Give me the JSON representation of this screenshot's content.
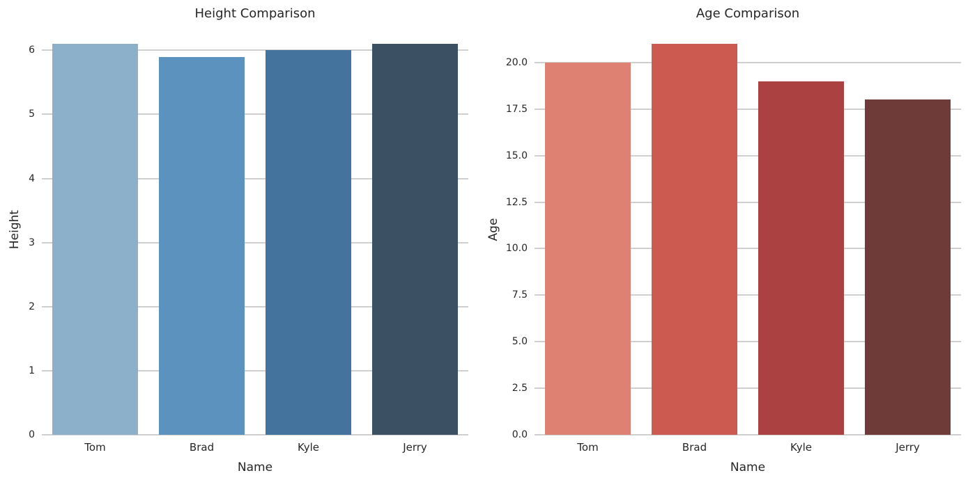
{
  "figure": {
    "background": "#ffffff",
    "text_color": "#262626",
    "grid_color": "#cfcfcf",
    "grid_style": "whitegrid"
  },
  "chart_data": [
    {
      "type": "bar",
      "title": "Height Comparison",
      "xlabel": "Name",
      "ylabel": "Height",
      "categories": [
        "Tom",
        "Brad",
        "Kyle",
        "Jerry"
      ],
      "values": [
        6.1,
        5.9,
        6.0,
        6.1
      ],
      "colors": [
        "#8DB0CA",
        "#5B93BE",
        "#44739D",
        "#3B5163"
      ],
      "palette": "blues-dark",
      "ylim": [
        0,
        6.405
      ],
      "yticks": [
        {
          "value": 0,
          "label": "0"
        },
        {
          "value": 1,
          "label": "1"
        },
        {
          "value": 2,
          "label": "2"
        },
        {
          "value": 3,
          "label": "3"
        },
        {
          "value": 4,
          "label": "4"
        },
        {
          "value": 5,
          "label": "5"
        },
        {
          "value": 6,
          "label": "6"
        }
      ],
      "grid": true,
      "legend": "none"
    },
    {
      "type": "bar",
      "title": "Age Comparison",
      "xlabel": "Name",
      "ylabel": "Age",
      "categories": [
        "Tom",
        "Brad",
        "Kyle",
        "Jerry"
      ],
      "values": [
        20,
        21,
        19,
        18
      ],
      "colors": [
        "#DF8172",
        "#CC5A50",
        "#AB4140",
        "#6E3B38"
      ],
      "palette": "reds-dark",
      "ylim": [
        0,
        22.05
      ],
      "yticks": [
        {
          "value": 0,
          "label": "0.0"
        },
        {
          "value": 2.5,
          "label": "2.5"
        },
        {
          "value": 5,
          "label": "5.0"
        },
        {
          "value": 7.5,
          "label": "7.5"
        },
        {
          "value": 10,
          "label": "10.0"
        },
        {
          "value": 12.5,
          "label": "12.5"
        },
        {
          "value": 15,
          "label": "15.0"
        },
        {
          "value": 17.5,
          "label": "17.5"
        },
        {
          "value": 20,
          "label": "20.0"
        }
      ],
      "grid": true,
      "legend": "none"
    }
  ]
}
